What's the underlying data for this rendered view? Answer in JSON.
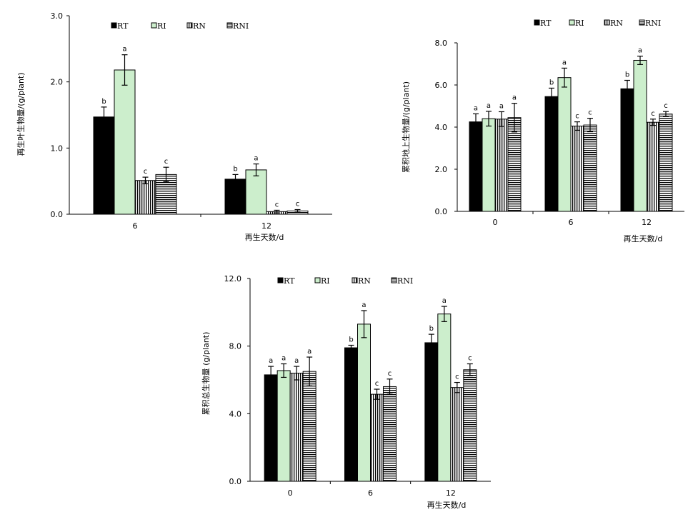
{
  "patterns": {
    "RT": "solid-black",
    "RI": "solid-light-green",
    "RN": "vertical-stripes",
    "RNI": "horizontal-stripes"
  },
  "colors": {
    "RI": "#cceecc",
    "stroke": "#000000"
  },
  "chart_data": [
    {
      "type": "bar",
      "ylabel": "再生叶生物量/(g/plant)",
      "xlabel": "再生天数/d",
      "ylim": [
        0,
        3
      ],
      "yticks": [
        "0.0",
        "1.0",
        "2.0",
        "3.0"
      ],
      "categories": [
        "6",
        "12"
      ],
      "legend": [
        "RT",
        "RI",
        "RN",
        "RNI"
      ],
      "series": [
        {
          "name": "RT",
          "values": [
            1.47,
            0.53
          ],
          "errors": [
            0.15,
            0.07
          ],
          "sig": [
            "b",
            "b"
          ]
        },
        {
          "name": "RI",
          "values": [
            2.18,
            0.67
          ],
          "errors": [
            0.23,
            0.09
          ],
          "sig": [
            "a",
            "a"
          ]
        },
        {
          "name": "RN",
          "values": [
            0.51,
            0.04
          ],
          "errors": [
            0.05,
            0.02
          ],
          "sig": [
            "c",
            "c"
          ]
        },
        {
          "name": "RNI",
          "values": [
            0.6,
            0.05
          ],
          "errors": [
            0.11,
            0.02
          ],
          "sig": [
            "c",
            "c"
          ]
        }
      ]
    },
    {
      "type": "bar",
      "ylabel": "累积地上生物量/(g/plant)",
      "xlabel": "再生天数/d",
      "ylim": [
        0,
        8
      ],
      "yticks": [
        "0.0",
        "2.0",
        "4.0",
        "6.0",
        "8.0"
      ],
      "categories": [
        "0",
        "6",
        "12"
      ],
      "legend": [
        "RT",
        "RI",
        "RN",
        "RNI"
      ],
      "series": [
        {
          "name": "RT",
          "values": [
            4.25,
            5.45,
            5.82
          ],
          "errors": [
            0.38,
            0.4,
            0.4
          ],
          "sig": [
            "a",
            "b",
            "b"
          ]
        },
        {
          "name": "RI",
          "values": [
            4.4,
            6.35,
            7.17
          ],
          "errors": [
            0.35,
            0.45,
            0.2
          ],
          "sig": [
            "a",
            "a",
            "a"
          ]
        },
        {
          "name": "RN",
          "values": [
            4.38,
            4.05,
            4.23
          ],
          "errors": [
            0.35,
            0.2,
            0.15
          ],
          "sig": [
            "a",
            "c",
            "c"
          ]
        },
        {
          "name": "RNI",
          "values": [
            4.45,
            4.1,
            4.62
          ],
          "errors": [
            0.68,
            0.32,
            0.12
          ],
          "sig": [
            "a",
            "c",
            "c"
          ]
        }
      ]
    },
    {
      "type": "bar",
      "ylabel": "累积总生物量 (g/plant)",
      "xlabel": "再生天数/d",
      "ylim": [
        0,
        12
      ],
      "yticks": [
        "0.0",
        "4.0",
        "8.0",
        "12.0"
      ],
      "categories": [
        "0",
        "6",
        "12"
      ],
      "legend": [
        "RT",
        "RI",
        "RN",
        "RNI"
      ],
      "series": [
        {
          "name": "RT",
          "values": [
            6.3,
            7.9,
            8.2
          ],
          "errors": [
            0.5,
            0.15,
            0.5
          ],
          "sig": [
            "a",
            "b",
            "b"
          ]
        },
        {
          "name": "RI",
          "values": [
            6.55,
            9.3,
            9.9
          ],
          "errors": [
            0.4,
            0.8,
            0.45
          ],
          "sig": [
            "a",
            "a",
            "a"
          ]
        },
        {
          "name": "RN",
          "values": [
            6.4,
            5.15,
            5.55
          ],
          "errors": [
            0.4,
            0.3,
            0.3
          ],
          "sig": [
            "a",
            "c",
            "c"
          ]
        },
        {
          "name": "RNI",
          "values": [
            6.5,
            5.6,
            6.6
          ],
          "errors": [
            0.85,
            0.45,
            0.35
          ],
          "sig": [
            "a",
            "c",
            "c"
          ]
        }
      ]
    }
  ]
}
